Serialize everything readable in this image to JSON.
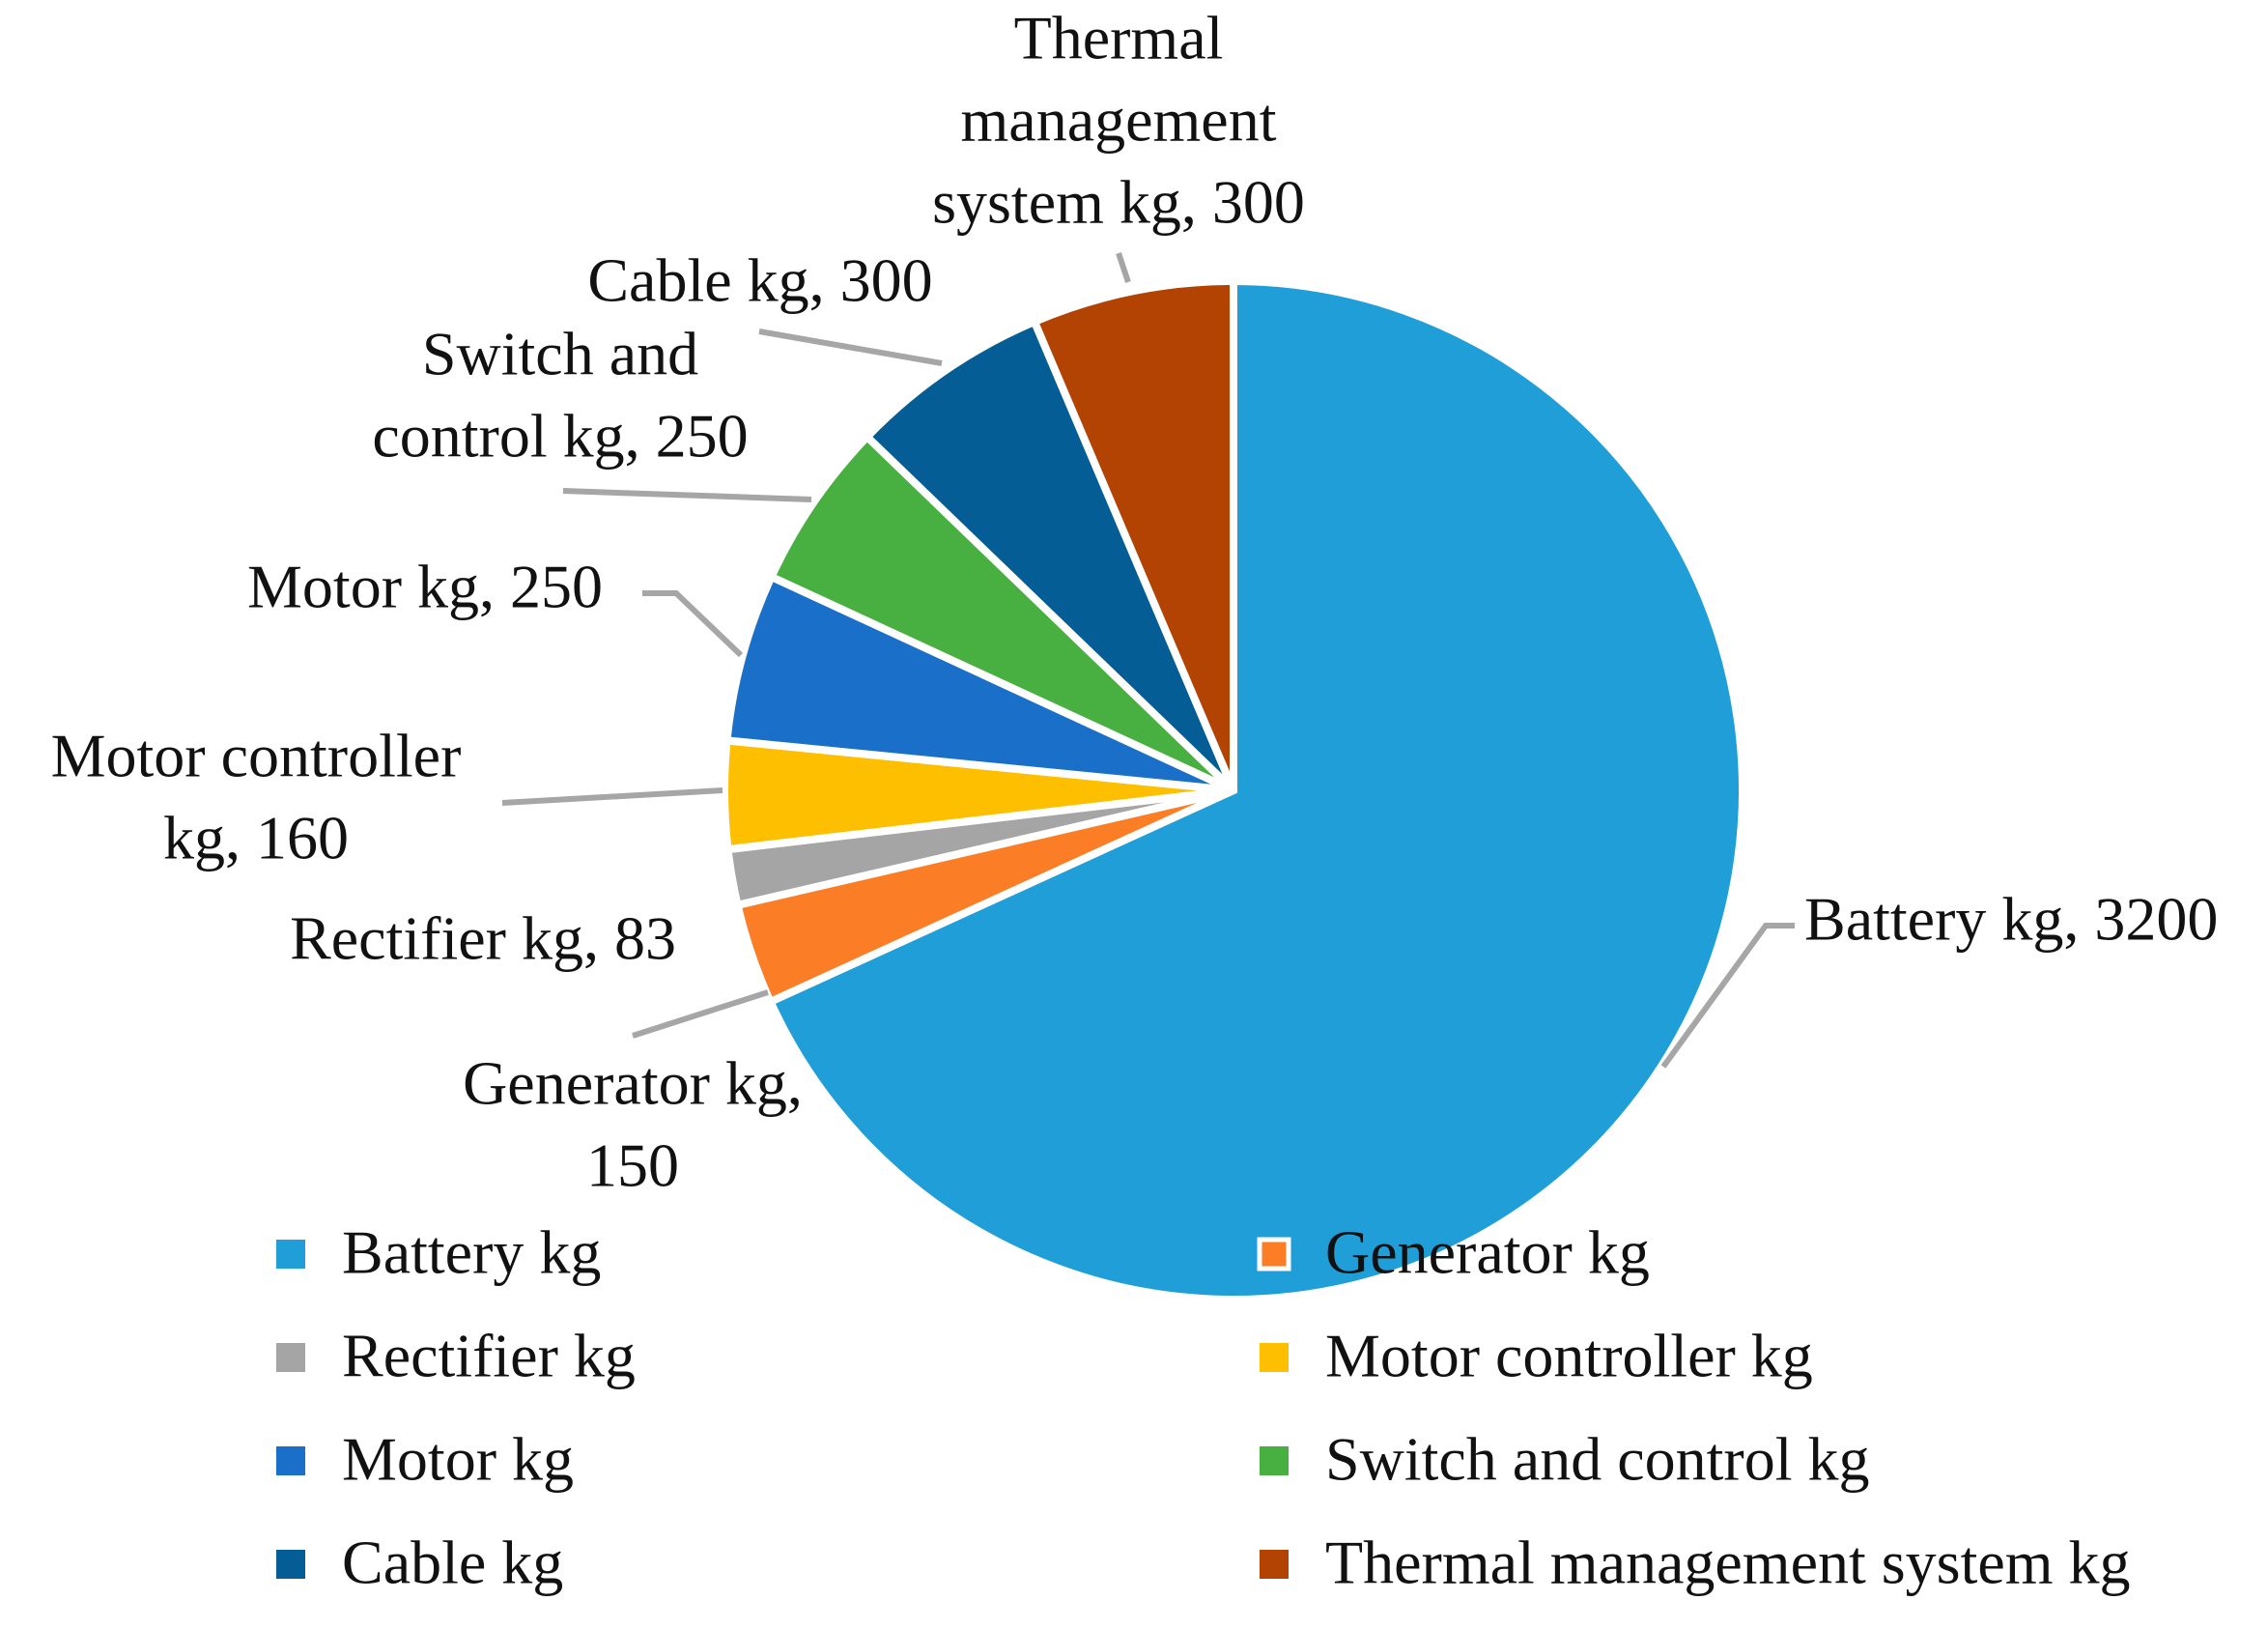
{
  "chart_data": {
    "type": "pie",
    "title": "",
    "legend_position": "bottom",
    "slices": [
      {
        "name": "Battery kg",
        "value": 3200,
        "color": "#1f9ed8",
        "label": [
          "Battery kg, 3200"
        ]
      },
      {
        "name": "Generator kg",
        "value": 150,
        "color": "#fb7d26",
        "label": [
          "Generator kg,",
          "150"
        ]
      },
      {
        "name": "Rectifier kg",
        "value": 83,
        "color": "#a5a5a5",
        "label": [
          "Rectifier kg, 83"
        ]
      },
      {
        "name": "Motor controller kg",
        "value": 160,
        "color": "#fdbf00",
        "label": [
          "Motor controller",
          "kg, 160"
        ]
      },
      {
        "name": "Motor kg",
        "value": 250,
        "color": "#1a70c9",
        "label": [
          "Motor kg, 250"
        ]
      },
      {
        "name": "Switch and control kg",
        "value": 250,
        "color": "#47b040",
        "label": [
          "Switch and",
          "control kg, 250"
        ]
      },
      {
        "name": "Cable kg",
        "value": 300,
        "color": "#045d94",
        "label": [
          "Cable kg, 300"
        ]
      },
      {
        "name": "Thermal management system kg",
        "value": 300,
        "color": "#b24302",
        "label": [
          "Thermal",
          "management",
          "system kg, 300"
        ]
      }
    ]
  }
}
